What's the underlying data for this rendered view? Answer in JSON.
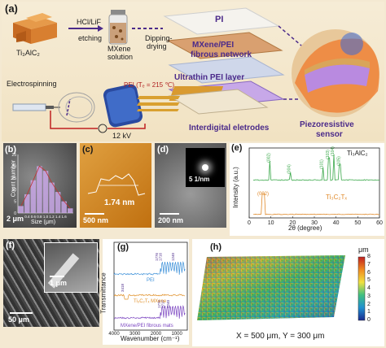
{
  "panel_a": {
    "label": "(a)",
    "max_phase": "Ti₃AlC₂",
    "etch_top": "HCl/LiF",
    "etch_bottom": "etching",
    "solution_top": "MXene",
    "solution_bottom": "solution",
    "dip_top": "Dipping-",
    "dip_bottom": "drying",
    "layer_pi": "PI",
    "layer_network_top": "MXene/PEI",
    "layer_network_bottom": "fibrous network",
    "layer_pei": "Ultrathin PEI layer",
    "electrospinning": "Electrospinning",
    "pei_temp": "PEI (Tₑ = 215 ℃)",
    "voltage": "12 kV",
    "electrodes": "Interdigital eletrodes",
    "sensor_top": "Piezoresistive",
    "sensor_bottom": "sensor"
  },
  "panel_b": {
    "label": "(b)",
    "ylabel": "Count Number",
    "xlabel": "Size (μm)",
    "scale": "2 μm",
    "chart_data": {
      "type": "bar",
      "categories": [
        "0.2",
        "0.4",
        "0.6",
        "0.8",
        "1.0",
        "1.2",
        "1.4",
        "1.6",
        "1.8"
      ],
      "values": [
        3,
        8,
        14,
        20,
        18,
        13,
        9,
        5,
        2
      ],
      "ylim": [
        0,
        25
      ],
      "yticks": [
        "0",
        "5",
        "10",
        "15",
        "20",
        "25"
      ],
      "xticks": [
        "0.4",
        "0.6",
        "0.8",
        "1.0",
        "1.2",
        "1.4",
        "1.6"
      ]
    }
  },
  "panel_c": {
    "label": "(c)",
    "height": "1.74 nm",
    "scale": "500 nm"
  },
  "panel_d": {
    "label": "(d)",
    "fft": "5 1/nm",
    "scale": "200 nm"
  },
  "panel_e": {
    "label": "(e)",
    "ylabel": "Intensity (a.u.)",
    "xlabel": "2θ (degree)",
    "top_name": "Ti₃AlC₂",
    "bottom_name": "Ti₃C₂Tₓ",
    "peaks_top": [
      "(002)",
      "(004)",
      "(101)",
      "(103)",
      "(104)",
      "(105)"
    ],
    "peak_bottom": "(002)",
    "xticks": [
      "0",
      "10",
      "20",
      "30",
      "40",
      "50",
      "60"
    ],
    "chart_data": {
      "type": "line",
      "xlabel": "2θ (degree)",
      "ylabel": "Intensity (a.u.)",
      "xlim": [
        0,
        60
      ],
      "series": [
        {
          "name": "Ti₃AlC₂",
          "x": [
            5,
            9.5,
            19,
            34,
            36.8,
            39,
            41.8,
            50,
            60
          ],
          "y": [
            0.05,
            0.9,
            0.35,
            0.5,
            0.8,
            0.9,
            0.6,
            0.1,
            0.05
          ]
        },
        {
          "name": "Ti₃C₂Tₓ",
          "x": [
            4,
            6.5,
            8,
            14,
            20,
            30,
            40,
            50,
            60
          ],
          "y": [
            0.1,
            0.75,
            0.3,
            0.1,
            0.06,
            0.05,
            0.05,
            0.05,
            0.05
          ]
        }
      ]
    }
  },
  "panel_f": {
    "label": "(f)",
    "inset_scale": "1 μm",
    "scale": "50 μm"
  },
  "panel_g": {
    "label": "(g)",
    "ylabel": "Transmittance",
    "xlabel": "Wavenumber (cm⁻¹)",
    "xticks": [
      "4000",
      "3000",
      "2000",
      "1000"
    ],
    "legend": [
      "PEI",
      "Ti₃C₂Tₓ MXene",
      "MXene/PEI fibrous mats"
    ],
    "annotations": [
      "1776",
      "1716",
      "1240",
      "3418",
      "1776",
      "1716",
      "1240"
    ],
    "chart_data": {
      "type": "line",
      "xlabel": "Wavenumber (cm⁻¹)",
      "ylabel": "Transmittance",
      "xlim": [
        4000,
        500
      ],
      "series": [
        {
          "name": "PEI",
          "x": [
            4000,
            3000,
            2000,
            1776,
            1716,
            1240,
            1000
          ],
          "y": [
            0.92,
            0.91,
            0.9,
            0.8,
            0.72,
            0.7,
            0.8
          ]
        },
        {
          "name": "Ti₃C₂Tₓ MXene",
          "x": [
            4000,
            3418,
            3000,
            2000,
            1000
          ],
          "y": [
            0.6,
            0.5,
            0.56,
            0.55,
            0.52
          ]
        },
        {
          "name": "MXene/PEI fibrous mats",
          "x": [
            4000,
            3000,
            2000,
            1776,
            1716,
            1240,
            1000
          ],
          "y": [
            0.35,
            0.34,
            0.33,
            0.25,
            0.18,
            0.15,
            0.22
          ]
        }
      ]
    }
  },
  "panel_h": {
    "label": "(h)",
    "unit": "μm",
    "colorbar_ticks": [
      "8",
      "7",
      "6",
      "5",
      "4",
      "3",
      "2",
      "1",
      "0"
    ],
    "caption": "X = 500 μm, Y = 300 μm"
  },
  "colors": {
    "accent_purple": "#4b2a8a",
    "bar_fill": "#c9a8e8",
    "xrd_green": "#3aa84a",
    "xrd_orange": "#e08a2a",
    "ftir_blue": "#3a8fd8",
    "ftir_orange": "#e0912a",
    "ftir_purple": "#7a44c0"
  }
}
